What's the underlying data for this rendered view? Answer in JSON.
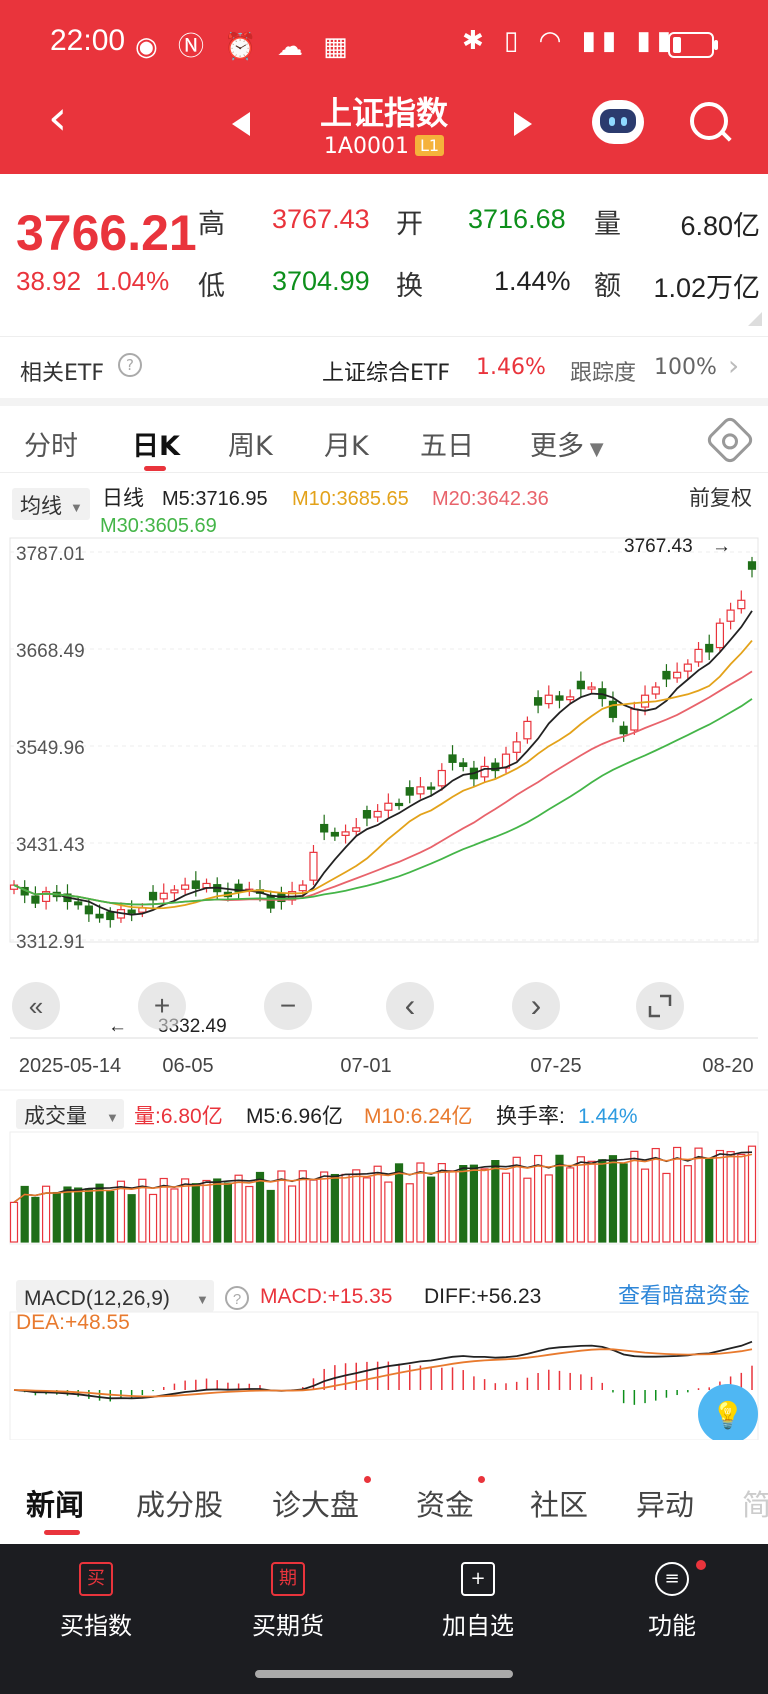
{
  "status_bar": {
    "time": "22:00"
  },
  "header": {
    "title": "上证指数",
    "code": "1A0001",
    "level": "L1"
  },
  "quote": {
    "price": "3766.21",
    "change": "38.92",
    "change_pct": "1.04%",
    "high_label": "高",
    "high": "3767.43",
    "low_label": "低",
    "low": "3704.99",
    "open_label": "开",
    "open": "3716.68",
    "turnover_label": "换",
    "turnover": "1.44%",
    "volume_label": "量",
    "volume": "6.80亿",
    "amount_label": "额",
    "amount": "1.02万亿"
  },
  "etf": {
    "label": "相关ETF",
    "name": "上证综合ETF",
    "change": "1.46%",
    "track_label": "跟踪度",
    "track": "100%"
  },
  "tabs": [
    {
      "label": "分时"
    },
    {
      "label": "日K"
    },
    {
      "label": "周K"
    },
    {
      "label": "月K"
    },
    {
      "label": "五日"
    },
    {
      "label": "更多"
    }
  ],
  "ma_bar": {
    "select": "均线",
    "kind": "日线",
    "m5": "M5:3716.95",
    "m10": "M10:3685.65",
    "m20": "M20:3642.36",
    "m30": "M30:3605.69",
    "adjust": "前复权"
  },
  "chart_controls": [
    "«",
    "+",
    "−",
    "‹",
    "›"
  ],
  "vol_bar": {
    "select": "成交量",
    "vol": "量:6.80亿",
    "m5": "M5:6.96亿",
    "m10": "M10:6.24亿",
    "turnover_label": "换手率:",
    "turnover": "1.44%"
  },
  "macd_bar": {
    "select": "MACD(12,26,9)",
    "macd": "MACD:+15.35",
    "diff": "DIFF:+56.23",
    "dea": "DEA:+48.55",
    "link": "查看暗盘资金"
  },
  "news_tabs": [
    {
      "label": "新闻"
    },
    {
      "label": "成分股"
    },
    {
      "label": "诊大盘"
    },
    {
      "label": "资金"
    },
    {
      "label": "社区"
    },
    {
      "label": "异动"
    },
    {
      "label": "简"
    }
  ],
  "bottom_nav": [
    {
      "label": "买指数",
      "icon": "买"
    },
    {
      "label": "买期货",
      "icon": "期"
    },
    {
      "label": "加自选",
      "icon": "+"
    },
    {
      "label": "功能",
      "icon": "≡"
    }
  ],
  "chart_data": {
    "type": "candlestick",
    "y_ticks": [
      "3787.01",
      "3668.49",
      "3549.96",
      "3431.43",
      "3312.91"
    ],
    "ylim": [
      3312.91,
      3787.01
    ],
    "x_ticks": [
      "2025-05-14",
      "06-05",
      "07-01",
      "07-25",
      "08-20"
    ],
    "high_marker": "3767.43",
    "low_marker": "3332.49",
    "close_approx": [
      3380,
      3368,
      3358,
      3372,
      3366,
      3360,
      3356,
      3345,
      3340,
      3338,
      3350,
      3346,
      3352,
      3362,
      3370,
      3374,
      3380,
      3376,
      3382,
      3372,
      3366,
      3372,
      3375,
      3370,
      3352,
      3360,
      3372,
      3380,
      3420,
      3445,
      3440,
      3445,
      3450,
      3462,
      3470,
      3480,
      3478,
      3490,
      3500,
      3498,
      3520,
      3530,
      3525,
      3510,
      3525,
      3520,
      3540,
      3555,
      3580,
      3600,
      3612,
      3606,
      3610,
      3620,
      3622,
      3608,
      3585,
      3565,
      3595,
      3612,
      3622,
      3632,
      3640,
      3650,
      3668,
      3665,
      3700,
      3716,
      3728,
      3766
    ],
    "series": [
      {
        "name": "M5",
        "color": "#222222"
      },
      {
        "name": "M10",
        "color": "#e3a21a"
      },
      {
        "name": "M20",
        "color": "#e8636b"
      },
      {
        "name": "M30",
        "color": "#44b548"
      }
    ]
  },
  "colors": {
    "brand": "#e9343c",
    "up": "#e9343c",
    "down": "#1f6e18"
  }
}
